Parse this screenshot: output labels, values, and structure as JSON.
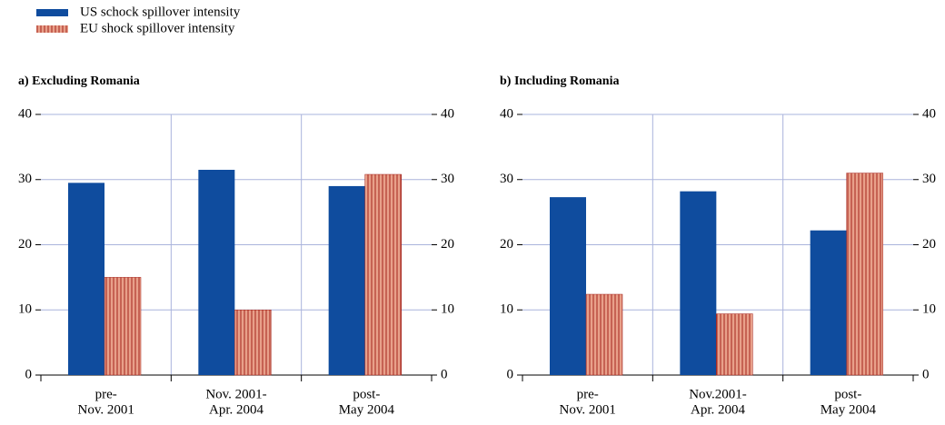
{
  "chart_data": [
    {
      "type": "bar",
      "title": "a) Excluding Romania",
      "categories": [
        [
          "pre-",
          "Nov. 2001"
        ],
        [
          "Nov. 2001-",
          "Apr. 2004"
        ],
        [
          "post-",
          "May 2004"
        ]
      ],
      "series": [
        {
          "name": "US schock spillover intensity",
          "color": "#0f4c9e",
          "values": [
            29.5,
            31.5,
            29
          ]
        },
        {
          "name": "EU shock spillover intensity",
          "color": "#e8a08a",
          "values": [
            15,
            10,
            30.8
          ]
        }
      ],
      "ylim": [
        0,
        40
      ],
      "yticks": [
        0,
        10,
        20,
        30,
        40
      ],
      "y2lim": [
        0,
        40
      ],
      "y2ticks": [
        0,
        10,
        20,
        30,
        40
      ],
      "grid": true
    },
    {
      "type": "bar",
      "title": "b) Including Romania",
      "categories": [
        [
          "pre-",
          "Nov. 2001"
        ],
        [
          "Nov.2001-",
          "Apr. 2004"
        ],
        [
          "post-",
          "May 2004"
        ]
      ],
      "series": [
        {
          "color": "#0f4c9e",
          "values": [
            27.3,
            28.2,
            22.2
          ]
        },
        {
          "color": "#e8a08a",
          "values": [
            12.4,
            9.4,
            31
          ]
        }
      ],
      "ylim": [
        0,
        40
      ],
      "yticks": [
        0,
        10,
        20,
        30,
        40
      ],
      "y2lim": [
        0,
        40
      ],
      "y2ticks": [
        0,
        10,
        20,
        30,
        40
      ],
      "grid": true
    }
  ]
}
